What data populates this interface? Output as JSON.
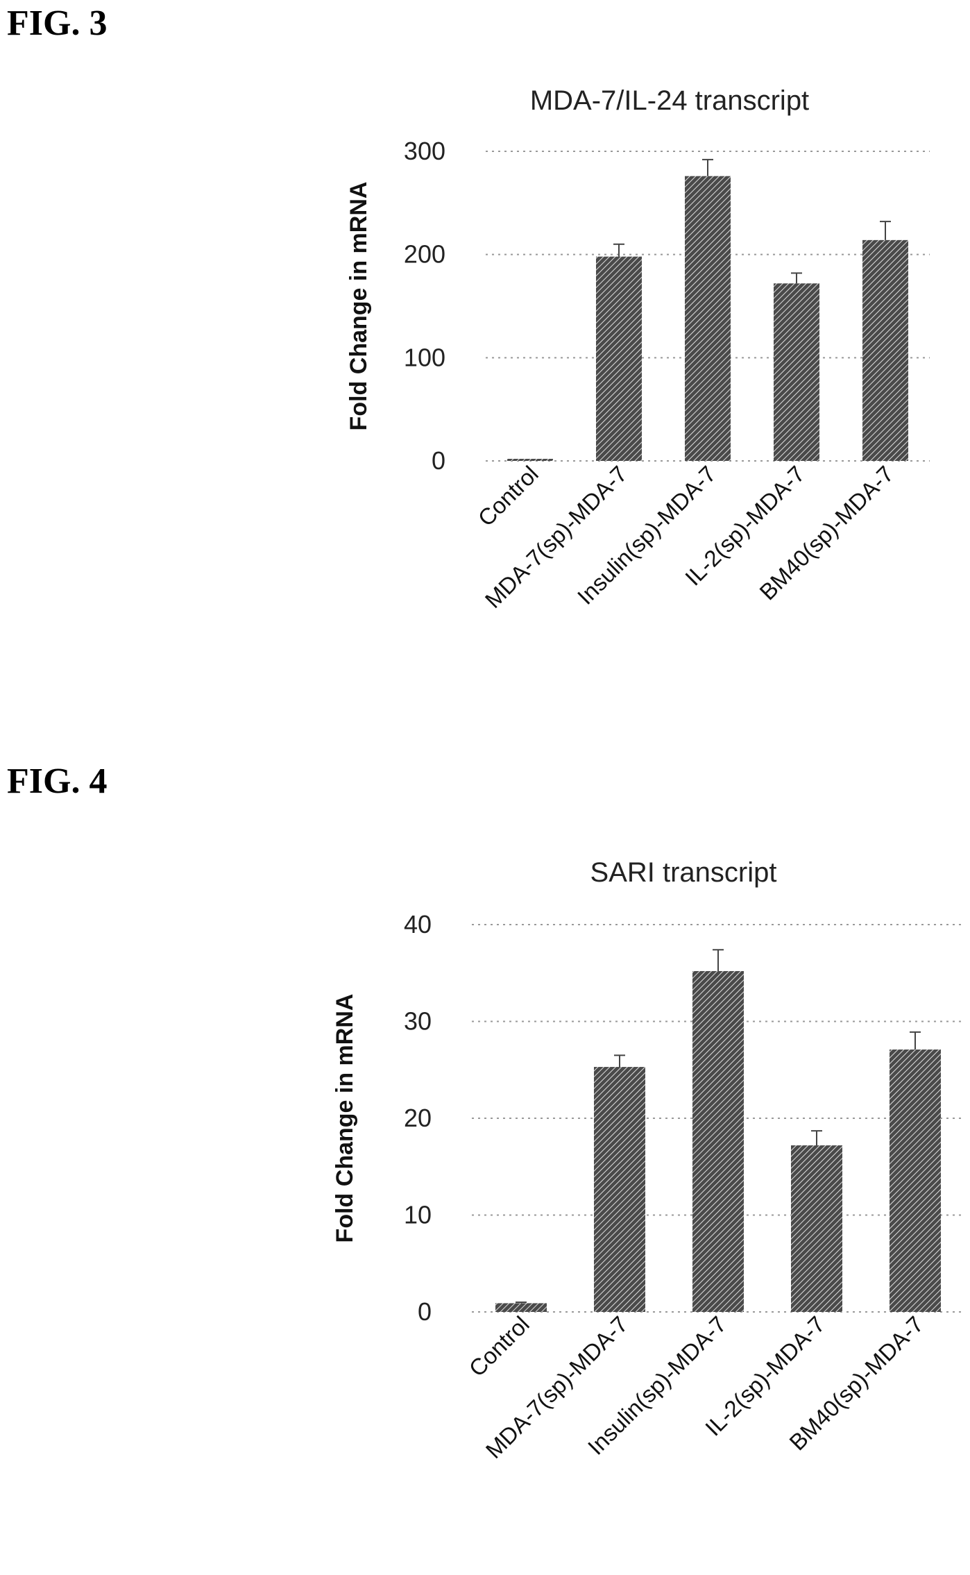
{
  "figures": [
    {
      "label": "FIG. 3"
    },
    {
      "label": "FIG. 4"
    }
  ],
  "colors": {
    "bar_fill": "#4a4a4a",
    "bar_hatch": "#e0e0e0",
    "error_bar": "#444444",
    "grid": "#999999"
  },
  "chart_data": [
    {
      "type": "bar",
      "title": "MDA-7/IL-24 transcript",
      "xlabel": "",
      "ylabel": "Fold Change in mRNA",
      "categories": [
        "Control",
        "MDA-7(sp)-MDA-7",
        "Insulin(sp)-MDA-7",
        "IL-2(sp)-MDA-7",
        "BM40(sp)-MDA-7"
      ],
      "values": [
        1,
        198,
        276,
        172,
        214
      ],
      "errors": [
        0.5,
        12,
        16,
        10,
        18
      ],
      "ylim": [
        0,
        300
      ],
      "yticks": [
        "0",
        "100",
        "200",
        "300"
      ],
      "grid": true,
      "legend": "none"
    },
    {
      "type": "bar",
      "title": "SARI transcript",
      "xlabel": "",
      "ylabel": "Fold Change in mRNA",
      "categories": [
        "Control",
        "MDA-7(sp)-MDA-7",
        "Insulin(sp)-MDA-7",
        "IL-2(sp)-MDA-7",
        "BM40(sp)-MDA-7"
      ],
      "values": [
        0.9,
        25.3,
        35.2,
        17.2,
        27.1
      ],
      "errors": [
        0.1,
        1.2,
        2.2,
        1.5,
        1.8
      ],
      "ylim": [
        0,
        40
      ],
      "yticks": [
        "0",
        "10",
        "20",
        "30",
        "40"
      ],
      "grid": true,
      "legend": "none"
    }
  ]
}
